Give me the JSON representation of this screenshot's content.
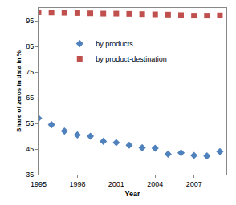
{
  "chart_data": {
    "type": "scatter",
    "x_label": "Year",
    "y_label": "Share of zeros in data in %",
    "x": [
      1995,
      1996,
      1997,
      1998,
      1999,
      2000,
      2001,
      2002,
      2003,
      2004,
      2005,
      2006,
      2007,
      2008,
      2009
    ],
    "series": [
      {
        "name": "by products",
        "color": "#4F81BD",
        "marker": "diamond",
        "values": [
          57,
          54.5,
          52,
          50.5,
          50,
          48,
          47.5,
          46.5,
          45.5,
          45.3,
          43,
          43.5,
          42.5,
          42.3,
          44
        ]
      },
      {
        "name": "by product-destination",
        "color": "#C0504D",
        "marker": "square",
        "values": [
          98.3,
          98.2,
          98.1,
          98,
          97.9,
          97.8,
          97.8,
          97.7,
          97.6,
          97.5,
          97.4,
          97.2,
          97,
          97,
          97.1
        ]
      }
    ],
    "xlim": [
      1995,
      2009.5
    ],
    "xticks": [
      1995,
      1998,
      2001,
      2004,
      2007
    ],
    "ylim": [
      35,
      100
    ],
    "yticks": [
      35,
      45,
      55,
      65,
      75,
      85,
      95
    ],
    "grid": false,
    "legend": "center"
  }
}
